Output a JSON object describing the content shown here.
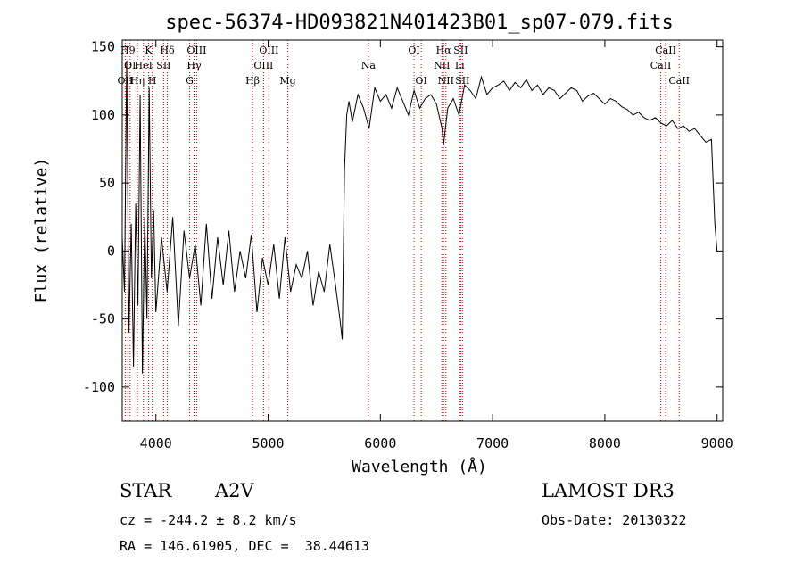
{
  "chart_data": {
    "type": "line",
    "title": "spec-56374-HD093821N401423B01_sp07-079.fits",
    "xlabel": "Wavelength (Å)",
    "ylabel": "Flux (relative)",
    "xlim": [
      3700,
      9050
    ],
    "ylim": [
      -125,
      155
    ],
    "x_ticks": [
      4000,
      5000,
      6000,
      7000,
      8000,
      9000
    ],
    "y_ticks": [
      -100,
      -50,
      0,
      50,
      100,
      150
    ],
    "grid": false,
    "legend": "none",
    "line_color": "#000000",
    "marker_color": "#cc0000",
    "series": [
      {
        "x": [
          3700,
          3720,
          3740,
          3760,
          3780,
          3800,
          3820,
          3840,
          3860,
          3880,
          3900,
          3920,
          3940,
          3960,
          3980,
          4000,
          4050,
          4100,
          4150,
          4200,
          4250,
          4300,
          4350,
          4400,
          4450,
          4500,
          4550,
          4600,
          4650,
          4700,
          4750,
          4800,
          4850,
          4900,
          4950,
          5000,
          5050,
          5100,
          5150,
          5200,
          5250,
          5300,
          5350,
          5400,
          5450,
          5500,
          5550,
          5600,
          5640,
          5660,
          5680,
          5700,
          5720,
          5750,
          5800,
          5850,
          5900,
          5950,
          6000,
          6050,
          6100,
          6150,
          6200,
          6250,
          6300,
          6350,
          6400,
          6450,
          6500,
          6550,
          6563,
          6600,
          6650,
          6700,
          6750,
          6800,
          6850,
          6900,
          6950,
          7000,
          7050,
          7100,
          7150,
          7200,
          7250,
          7300,
          7350,
          7400,
          7450,
          7500,
          7550,
          7600,
          7650,
          7700,
          7750,
          7800,
          7850,
          7900,
          7950,
          8000,
          8050,
          8100,
          8150,
          8200,
          8250,
          8300,
          8350,
          8400,
          8450,
          8500,
          8550,
          8600,
          8650,
          8700,
          8750,
          8800,
          8850,
          8900,
          8950,
          8980,
          9000
        ],
        "y": [
          10,
          -30,
          140,
          -60,
          20,
          -85,
          35,
          -40,
          115,
          -90,
          25,
          -50,
          120,
          -20,
          30,
          -45,
          10,
          -30,
          25,
          -55,
          15,
          -20,
          5,
          -40,
          20,
          -35,
          10,
          -25,
          15,
          -30,
          0,
          -20,
          12,
          -45,
          -5,
          -25,
          5,
          -35,
          10,
          -30,
          -10,
          -20,
          0,
          -40,
          -15,
          -30,
          5,
          -25,
          -50,
          -65,
          60,
          100,
          110,
          95,
          115,
          105,
          90,
          120,
          110,
          115,
          105,
          120,
          110,
          100,
          118,
          105,
          112,
          115,
          108,
          90,
          78,
          105,
          112,
          100,
          122,
          118,
          112,
          128,
          115,
          120,
          122,
          125,
          118,
          124,
          120,
          126,
          118,
          122,
          115,
          120,
          118,
          112,
          116,
          120,
          118,
          110,
          114,
          116,
          112,
          108,
          112,
          110,
          106,
          104,
          100,
          102,
          98,
          96,
          98,
          94,
          92,
          96,
          90,
          92,
          88,
          90,
          85,
          80,
          82,
          20,
          0
        ]
      }
    ],
    "line_markers": [
      {
        "x": 3727,
        "label": "OII",
        "row": 3
      },
      {
        "x": 3750,
        "label": "H9",
        "row": 1
      },
      {
        "x": 3770,
        "label": "OI",
        "row": 2
      },
      {
        "x": 3835,
        "label": "Hη",
        "row": 3
      },
      {
        "x": 3889,
        "label": "HeI",
        "row": 2
      },
      {
        "x": 3934,
        "label": "K",
        "row": 1
      },
      {
        "x": 3968,
        "label": "H",
        "row": 3
      },
      {
        "x": 4069,
        "label": "SII",
        "row": 2
      },
      {
        "x": 4102,
        "label": "Hδ",
        "row": 1
      },
      {
        "x": 4300,
        "label": "G",
        "row": 3
      },
      {
        "x": 4340,
        "label": "Hγ",
        "row": 2
      },
      {
        "x": 4363,
        "label": "OIII",
        "row": 1
      },
      {
        "x": 4861,
        "label": "Hβ",
        "row": 3
      },
      {
        "x": 4959,
        "label": "OIII",
        "row": 2
      },
      {
        "x": 5007,
        "label": "OIII",
        "row": 1
      },
      {
        "x": 5175,
        "label": "Mg",
        "row": 3
      },
      {
        "x": 5893,
        "label": "Na",
        "row": 2
      },
      {
        "x": 6300,
        "label": "OI",
        "row": 1
      },
      {
        "x": 6364,
        "label": "OI",
        "row": 3
      },
      {
        "x": 6548,
        "label": "NII",
        "row": 2
      },
      {
        "x": 6563,
        "label": "Hα",
        "row": 1
      },
      {
        "x": 6584,
        "label": "NII",
        "row": 3
      },
      {
        "x": 6707,
        "label": "Li",
        "row": 2
      },
      {
        "x": 6716,
        "label": "SII",
        "row": 1
      },
      {
        "x": 6731,
        "label": "SII",
        "row": 3
      },
      {
        "x": 8498,
        "label": "CaII",
        "row": 2
      },
      {
        "x": 8542,
        "label": "CaII",
        "row": 1
      },
      {
        "x": 8662,
        "label": "CaII",
        "row": 3
      }
    ]
  },
  "info": {
    "object_class": "STAR",
    "subclass": "A2V",
    "survey": "LAMOST DR3",
    "redshift": "cz = -244.2 ± 8.2 km/s",
    "obs_date": "Obs-Date: 20130322",
    "coords": "RA = 146.61905, DEC =  38.44613"
  }
}
